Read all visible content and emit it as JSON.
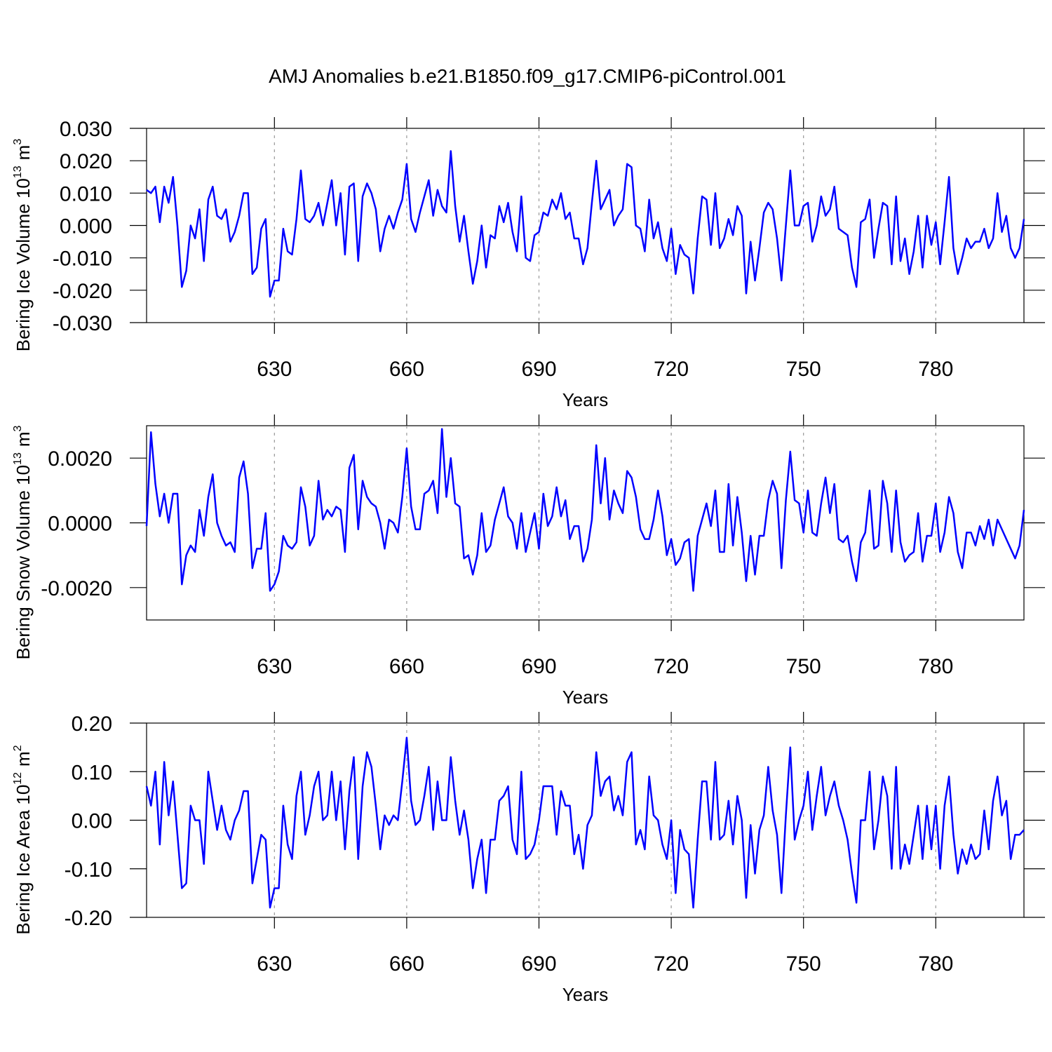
{
  "title": "AMJ Anomalies b.e21.B1850.f09_g17.CMIP6-piControl.001",
  "chart_data": [
    {
      "type": "line",
      "color": "#0000ff",
      "xlabel": "Years",
      "ylabel": {
        "main": "Bering Ice Volume 10",
        "exp": "13",
        "unit": "m",
        "unit_exp": "3"
      },
      "xlim": [
        601,
        800
      ],
      "xticks": [
        630,
        660,
        690,
        720,
        750,
        780
      ],
      "xgrid": true,
      "ylim": [
        -0.03,
        0.03
      ],
      "yticks": [
        {
          "value": -0.03,
          "label": "-0.030"
        },
        {
          "value": -0.02,
          "label": "-0.020"
        },
        {
          "value": -0.01,
          "label": "-0.010"
        },
        {
          "value": 0,
          "label": "0.000"
        },
        {
          "value": 0.01,
          "label": "0.010"
        },
        {
          "value": 0.02,
          "label": "0.020"
        },
        {
          "value": 0.03,
          "label": "0.030"
        }
      ],
      "x": [
        601,
        602,
        603,
        604,
        605,
        606,
        607,
        608,
        609,
        610,
        611,
        612,
        613,
        614,
        615,
        616,
        617,
        618,
        619,
        620,
        621,
        622,
        623,
        624,
        625,
        626,
        627,
        628,
        629,
        630,
        631,
        632,
        633,
        634,
        635,
        636,
        637,
        638,
        639,
        640,
        641,
        642,
        643,
        644,
        645,
        646,
        647,
        648,
        649,
        650,
        651,
        652,
        653,
        654,
        655,
        656,
        657,
        658,
        659,
        660,
        661,
        662,
        663,
        664,
        665,
        666,
        667,
        668,
        669,
        670,
        671,
        672,
        673,
        674,
        675,
        676,
        677,
        678,
        679,
        680,
        681,
        682,
        683,
        684,
        685,
        686,
        687,
        688,
        689,
        690,
        691,
        692,
        693,
        694,
        695,
        696,
        697,
        698,
        699,
        700,
        701,
        702,
        703,
        704,
        705,
        706,
        707,
        708,
        709,
        710,
        711,
        712,
        713,
        714,
        715,
        716,
        717,
        718,
        719,
        720,
        721,
        722,
        723,
        724,
        725,
        726,
        727,
        728,
        729,
        730,
        731,
        732,
        733,
        734,
        735,
        736,
        737,
        738,
        739,
        740,
        741,
        742,
        743,
        744,
        745,
        746,
        747,
        748,
        749,
        750,
        751,
        752,
        753,
        754,
        755,
        756,
        757,
        758,
        759,
        760,
        761,
        762,
        763,
        764,
        765,
        766,
        767,
        768,
        769,
        770,
        771,
        772,
        773,
        774,
        775,
        776,
        777,
        778,
        779,
        780,
        781,
        782,
        783,
        784,
        785,
        786,
        787,
        788,
        789,
        790,
        791,
        792,
        793,
        794,
        795,
        796,
        797,
        798,
        799,
        800
      ],
      "values": [
        0.011,
        0.01,
        0.012,
        0.001,
        0.012,
        0.007,
        0.015,
        0.0,
        -0.019,
        -0.014,
        0.0,
        -0.004,
        0.005,
        -0.011,
        0.008,
        0.012,
        0.003,
        0.002,
        0.005,
        -0.005,
        -0.002,
        0.003,
        0.01,
        0.01,
        -0.015,
        -0.013,
        -0.001,
        0.002,
        -0.022,
        -0.017,
        -0.017,
        -0.001,
        -0.008,
        -0.009,
        0.002,
        0.017,
        0.002,
        0.001,
        0.003,
        0.007,
        0.0,
        0.007,
        0.014,
        0.0,
        0.01,
        -0.009,
        0.012,
        0.013,
        -0.011,
        0.009,
        0.013,
        0.01,
        0.005,
        -0.008,
        -0.001,
        0.003,
        -0.001,
        0.004,
        0.008,
        0.019,
        0.002,
        -0.002,
        0.004,
        0.009,
        0.014,
        0.003,
        0.011,
        0.006,
        0.004,
        0.023,
        0.006,
        -0.005,
        0.003,
        -0.008,
        -0.018,
        -0.011,
        0.0,
        -0.013,
        -0.003,
        -0.004,
        0.006,
        0.001,
        0.007,
        -0.002,
        -0.008,
        0.009,
        -0.01,
        -0.011,
        -0.003,
        -0.002,
        0.004,
        0.003,
        0.008,
        0.005,
        0.01,
        0.002,
        0.004,
        -0.004,
        -0.004,
        -0.012,
        -0.007,
        0.007,
        0.02,
        0.005,
        0.008,
        0.011,
        0.0,
        0.003,
        0.005,
        0.019,
        0.018,
        0.0,
        -0.001,
        -0.008,
        0.008,
        -0.004,
        0.001,
        -0.007,
        -0.011,
        -0.001,
        -0.015,
        -0.006,
        -0.009,
        -0.01,
        -0.021,
        -0.004,
        0.009,
        0.008,
        -0.006,
        0.01,
        -0.007,
        -0.004,
        0.002,
        -0.003,
        0.006,
        0.003,
        -0.021,
        -0.005,
        -0.017,
        -0.007,
        0.004,
        0.007,
        0.005,
        -0.004,
        -0.017,
        0.0,
        0.017,
        0.0,
        0.0,
        0.006,
        0.007,
        -0.005,
        0.0,
        0.009,
        0.003,
        0.005,
        0.012,
        -0.001,
        -0.002,
        -0.003,
        -0.013,
        -0.019,
        0.001,
        0.002,
        0.008,
        -0.01,
        -0.001,
        0.007,
        0.006,
        -0.012,
        0.009,
        -0.011,
        -0.004,
        -0.015,
        -0.008,
        0.003,
        -0.013,
        0.003,
        -0.006,
        0.001,
        -0.012,
        0.001,
        0.015,
        -0.007,
        -0.015,
        -0.01,
        -0.004,
        -0.007,
        -0.005,
        -0.005,
        -0.001,
        -0.007,
        -0.004,
        0.01,
        -0.002,
        0.003,
        -0.007,
        -0.01,
        -0.007,
        0.002
      ]
    },
    {
      "type": "line",
      "color": "#0000ff",
      "xlabel": "Years",
      "ylabel": {
        "main": "Bering Snow Volume 10",
        "exp": "13",
        "unit": "m",
        "unit_exp": "3"
      },
      "xlim": [
        601,
        800
      ],
      "xticks": [
        630,
        660,
        690,
        720,
        750,
        780
      ],
      "xgrid": true,
      "ylim": [
        -0.003,
        0.003
      ],
      "yticks": [
        {
          "value": -0.002,
          "label": "-0.0020"
        },
        {
          "value": 0,
          "label": "0.0000"
        },
        {
          "value": 0.002,
          "label": "0.0020"
        }
      ],
      "x": [
        601,
        602,
        603,
        604,
        605,
        606,
        607,
        608,
        609,
        610,
        611,
        612,
        613,
        614,
        615,
        616,
        617,
        618,
        619,
        620,
        621,
        622,
        623,
        624,
        625,
        626,
        627,
        628,
        629,
        630,
        631,
        632,
        633,
        634,
        635,
        636,
        637,
        638,
        639,
        640,
        641,
        642,
        643,
        644,
        645,
        646,
        647,
        648,
        649,
        650,
        651,
        652,
        653,
        654,
        655,
        656,
        657,
        658,
        659,
        660,
        661,
        662,
        663,
        664,
        665,
        666,
        667,
        668,
        669,
        670,
        671,
        672,
        673,
        674,
        675,
        676,
        677,
        678,
        679,
        680,
        681,
        682,
        683,
        684,
        685,
        686,
        687,
        688,
        689,
        690,
        691,
        692,
        693,
        694,
        695,
        696,
        697,
        698,
        699,
        700,
        701,
        702,
        703,
        704,
        705,
        706,
        707,
        708,
        709,
        710,
        711,
        712,
        713,
        714,
        715,
        716,
        717,
        718,
        719,
        720,
        721,
        722,
        723,
        724,
        725,
        726,
        727,
        728,
        729,
        730,
        731,
        732,
        733,
        734,
        735,
        736,
        737,
        738,
        739,
        740,
        741,
        742,
        743,
        744,
        745,
        746,
        747,
        748,
        749,
        750,
        751,
        752,
        753,
        754,
        755,
        756,
        757,
        758,
        759,
        760,
        761,
        762,
        763,
        764,
        765,
        766,
        767,
        768,
        769,
        770,
        771,
        772,
        773,
        774,
        775,
        776,
        777,
        778,
        779,
        780,
        781,
        782,
        783,
        784,
        785,
        786,
        787,
        788,
        789,
        790,
        791,
        792,
        793,
        794,
        795,
        796,
        797,
        798,
        799,
        800
      ],
      "values": [
        -0.0001,
        0.0028,
        0.0012,
        0.0002,
        0.0009,
        0.0,
        0.0009,
        0.0009,
        -0.0019,
        -0.001,
        -0.0007,
        -0.0009,
        0.0004,
        -0.0004,
        0.0008,
        0.0015,
        0.0,
        -0.0004,
        -0.0007,
        -0.0006,
        -0.0009,
        0.0014,
        0.0019,
        0.0009,
        -0.0014,
        -0.0008,
        -0.0008,
        0.0003,
        -0.0021,
        -0.0019,
        -0.0015,
        -0.0004,
        -0.0007,
        -0.0008,
        -0.0006,
        0.0011,
        0.0005,
        -0.0007,
        -0.0004,
        0.0013,
        0.0001,
        0.0004,
        0.0002,
        0.0005,
        0.0004,
        -0.0009,
        0.0017,
        0.0021,
        -0.0002,
        0.0013,
        0.0008,
        0.0006,
        0.0005,
        0.0,
        -0.0008,
        0.0001,
        0.0,
        -0.0003,
        0.0008,
        0.0023,
        0.0005,
        -0.0002,
        -0.0002,
        0.0009,
        0.001,
        0.0013,
        0.0003,
        0.0029,
        0.0008,
        0.002,
        0.0006,
        0.0005,
        -0.0011,
        -0.001,
        -0.0016,
        -0.001,
        0.0003,
        -0.0009,
        -0.0007,
        0.0001,
        0.0006,
        0.0011,
        0.0002,
        0.0,
        -0.0008,
        0.0003,
        -0.0009,
        -0.0003,
        0.0003,
        -0.0008,
        0.0009,
        -0.0001,
        0.0002,
        0.0011,
        0.0002,
        0.0007,
        -0.0005,
        -0.0001,
        -0.0001,
        -0.0012,
        -0.0008,
        0.0001,
        0.0024,
        0.0006,
        0.002,
        0.0001,
        0.001,
        0.0006,
        0.0003,
        0.0016,
        0.0014,
        0.0008,
        -0.0002,
        -0.0005,
        -0.0005,
        0.0001,
        0.001,
        0.0002,
        -0.001,
        -0.0005,
        -0.0013,
        -0.0011,
        -0.0006,
        -0.0005,
        -0.0021,
        -0.0004,
        0.0001,
        0.0006,
        -0.0001,
        0.001,
        -0.0009,
        -0.0009,
        0.0012,
        -0.0007,
        0.0008,
        -0.0003,
        -0.0018,
        -0.0004,
        -0.0016,
        -0.0004,
        -0.0004,
        0.0007,
        0.0013,
        0.0009,
        -0.0014,
        0.0007,
        0.0022,
        0.0007,
        0.0006,
        -0.0003,
        0.001,
        -0.0003,
        -0.0004,
        0.0006,
        0.0014,
        0.0003,
        0.0012,
        -0.0005,
        -0.0006,
        -0.0004,
        -0.0012,
        -0.0018,
        -0.0006,
        -0.0003,
        0.001,
        -0.0008,
        -0.0007,
        0.0013,
        0.0006,
        -0.0009,
        0.001,
        -0.0006,
        -0.0012,
        -0.001,
        -0.0009,
        0.0003,
        -0.0012,
        -0.0004,
        -0.0004,
        0.0006,
        -0.0009,
        -0.0003,
        0.0008,
        0.0003,
        -0.0009,
        -0.0014,
        -0.0003,
        -0.0003,
        -0.0007,
        -0.0001,
        -0.0005,
        0.0001,
        -0.0007,
        0.0001,
        -0.0002,
        -0.0005,
        -0.0008,
        -0.0011,
        -0.0007,
        0.0004
      ]
    },
    {
      "type": "line",
      "color": "#0000ff",
      "xlabel": "Years",
      "ylabel": {
        "main": "Bering Ice Area 10",
        "exp": "12",
        "unit": "m",
        "unit_exp": "2"
      },
      "xlim": [
        601,
        800
      ],
      "xticks": [
        630,
        660,
        690,
        720,
        750,
        780
      ],
      "xgrid": true,
      "ylim": [
        -0.2,
        0.2
      ],
      "yticks": [
        {
          "value": -0.2,
          "label": "-0.20"
        },
        {
          "value": -0.1,
          "label": "-0.10"
        },
        {
          "value": 0,
          "label": "0.00"
        },
        {
          "value": 0.1,
          "label": "0.10"
        },
        {
          "value": 0.2,
          "label": "0.20"
        }
      ],
      "x": [
        601,
        602,
        603,
        604,
        605,
        606,
        607,
        608,
        609,
        610,
        611,
        612,
        613,
        614,
        615,
        616,
        617,
        618,
        619,
        620,
        621,
        622,
        623,
        624,
        625,
        626,
        627,
        628,
        629,
        630,
        631,
        632,
        633,
        634,
        635,
        636,
        637,
        638,
        639,
        640,
        641,
        642,
        643,
        644,
        645,
        646,
        647,
        648,
        649,
        650,
        651,
        652,
        653,
        654,
        655,
        656,
        657,
        658,
        659,
        660,
        661,
        662,
        663,
        664,
        665,
        666,
        667,
        668,
        669,
        670,
        671,
        672,
        673,
        674,
        675,
        676,
        677,
        678,
        679,
        680,
        681,
        682,
        683,
        684,
        685,
        686,
        687,
        688,
        689,
        690,
        691,
        692,
        693,
        694,
        695,
        696,
        697,
        698,
        699,
        700,
        701,
        702,
        703,
        704,
        705,
        706,
        707,
        708,
        709,
        710,
        711,
        712,
        713,
        714,
        715,
        716,
        717,
        718,
        719,
        720,
        721,
        722,
        723,
        724,
        725,
        726,
        727,
        728,
        729,
        730,
        731,
        732,
        733,
        734,
        735,
        736,
        737,
        738,
        739,
        740,
        741,
        742,
        743,
        744,
        745,
        746,
        747,
        748,
        749,
        750,
        751,
        752,
        753,
        754,
        755,
        756,
        757,
        758,
        759,
        760,
        761,
        762,
        763,
        764,
        765,
        766,
        767,
        768,
        769,
        770,
        771,
        772,
        773,
        774,
        775,
        776,
        777,
        778,
        779,
        780,
        781,
        782,
        783,
        784,
        785,
        786,
        787,
        788,
        789,
        790,
        791,
        792,
        793,
        794,
        795,
        796,
        797,
        798,
        799,
        800
      ],
      "values": [
        0.07,
        0.03,
        0.1,
        -0.05,
        0.12,
        0.01,
        0.08,
        -0.03,
        -0.14,
        -0.13,
        0.03,
        0.0,
        0.0,
        -0.09,
        0.1,
        0.04,
        -0.02,
        0.03,
        -0.02,
        -0.04,
        0.0,
        0.02,
        0.06,
        0.06,
        -0.13,
        -0.08,
        -0.03,
        -0.04,
        -0.18,
        -0.14,
        -0.14,
        0.03,
        -0.05,
        -0.08,
        0.05,
        0.1,
        -0.03,
        0.01,
        0.07,
        0.1,
        0.0,
        0.01,
        0.1,
        0.0,
        0.08,
        -0.06,
        0.06,
        0.13,
        -0.08,
        0.07,
        0.14,
        0.11,
        0.03,
        -0.06,
        0.01,
        -0.01,
        0.01,
        0.0,
        0.08,
        0.17,
        0.04,
        -0.01,
        0.0,
        0.05,
        0.11,
        -0.02,
        0.08,
        0.0,
        0.0,
        0.13,
        0.04,
        -0.03,
        0.02,
        -0.04,
        -0.14,
        -0.08,
        -0.04,
        -0.15,
        -0.04,
        -0.04,
        0.04,
        0.05,
        0.07,
        -0.04,
        -0.07,
        0.1,
        -0.08,
        -0.07,
        -0.05,
        0.0,
        0.07,
        0.07,
        0.07,
        -0.03,
        0.06,
        0.03,
        0.03,
        -0.07,
        -0.03,
        -0.1,
        -0.01,
        0.01,
        0.14,
        0.05,
        0.08,
        0.09,
        0.02,
        0.05,
        0.01,
        0.12,
        0.14,
        -0.05,
        -0.02,
        -0.06,
        0.09,
        0.01,
        0.0,
        -0.05,
        -0.08,
        0.0,
        -0.15,
        -0.02,
        -0.06,
        -0.07,
        -0.18,
        -0.04,
        0.08,
        0.08,
        -0.04,
        0.12,
        -0.04,
        -0.03,
        0.04,
        -0.05,
        0.05,
        0.0,
        -0.16,
        -0.01,
        -0.11,
        -0.02,
        0.01,
        0.11,
        0.02,
        -0.03,
        -0.15,
        0.01,
        0.15,
        -0.04,
        0.0,
        0.03,
        0.1,
        -0.02,
        0.05,
        0.11,
        0.01,
        0.05,
        0.08,
        0.03,
        0.0,
        -0.04,
        -0.11,
        -0.17,
        0.0,
        0.0,
        0.1,
        -0.06,
        0.0,
        0.09,
        0.05,
        -0.1,
        0.11,
        -0.1,
        -0.05,
        -0.09,
        -0.03,
        0.03,
        -0.08,
        0.03,
        -0.06,
        0.03,
        -0.1,
        0.03,
        0.09,
        -0.03,
        -0.11,
        -0.06,
        -0.09,
        -0.05,
        -0.08,
        -0.07,
        0.02,
        -0.06,
        0.04,
        0.09,
        0.01,
        0.04,
        -0.08,
        -0.03,
        -0.03,
        -0.02
      ]
    }
  ]
}
